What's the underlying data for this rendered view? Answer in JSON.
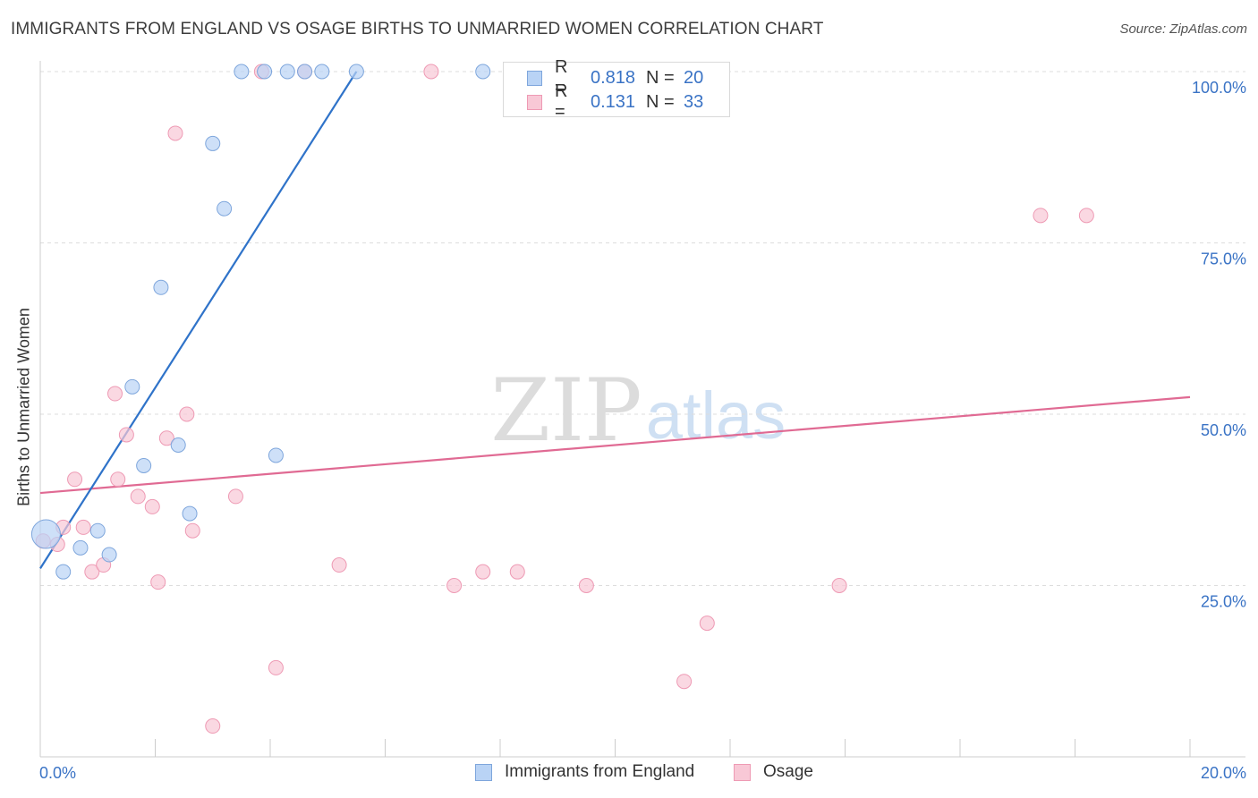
{
  "title": "IMMIGRANTS FROM ENGLAND VS OSAGE BIRTHS TO UNMARRIED WOMEN CORRELATION CHART",
  "source": "Source: ZipAtlas.com",
  "watermark": {
    "zip": "ZIP",
    "atlas": "atlas"
  },
  "colors": {
    "blue_fill": "#b9d3f5",
    "blue_stroke": "#7ea6dc",
    "blue_line": "#2f73c9",
    "pink_fill": "#f8c8d6",
    "pink_stroke": "#ee9ab4",
    "pink_line": "#e06a93",
    "axis_text": "#3a73c5"
  },
  "legend_top": [
    {
      "r_label": "R =",
      "r_value": "0.818",
      "n_label": "N =",
      "n_value": "20"
    },
    {
      "r_label": "R =",
      "r_value": "0.131",
      "n_label": "N =",
      "n_value": "33"
    }
  ],
  "chart_data": {
    "type": "scatter",
    "title": "IMMIGRANTS FROM ENGLAND VS OSAGE BIRTHS TO UNMARRIED WOMEN CORRELATION CHART",
    "xlabel": "",
    "ylabel": "Births to Unmarried Women",
    "xlim": [
      0,
      20
    ],
    "ylim": [
      0,
      100
    ],
    "x_tick_labels": [
      "0.0%",
      "20.0%"
    ],
    "y_tick_labels": [
      "25.0%",
      "50.0%",
      "75.0%",
      "100.0%"
    ],
    "y_ticks": [
      25,
      50,
      75,
      100
    ],
    "grid": true,
    "legend_position": "top-center",
    "series": [
      {
        "name": "Immigrants from England",
        "color": "blue",
        "trend": {
          "x": [
            0.0,
            5.5
          ],
          "y": [
            27.5,
            100.0
          ]
        },
        "points": [
          {
            "x": 0.1,
            "y": 32.5,
            "big": true
          },
          {
            "x": 0.4,
            "y": 27.0
          },
          {
            "x": 0.7,
            "y": 30.5
          },
          {
            "x": 1.0,
            "y": 33.0
          },
          {
            "x": 1.2,
            "y": 29.5
          },
          {
            "x": 1.6,
            "y": 54.0
          },
          {
            "x": 1.8,
            "y": 42.5
          },
          {
            "x": 2.1,
            "y": 68.5
          },
          {
            "x": 2.4,
            "y": 45.5
          },
          {
            "x": 2.6,
            "y": 35.5
          },
          {
            "x": 3.0,
            "y": 89.5
          },
          {
            "x": 3.2,
            "y": 80.0
          },
          {
            "x": 3.5,
            "y": 100.0
          },
          {
            "x": 3.9,
            "y": 100.0
          },
          {
            "x": 4.1,
            "y": 44.0
          },
          {
            "x": 4.3,
            "y": 100.0
          },
          {
            "x": 4.6,
            "y": 100.0
          },
          {
            "x": 4.9,
            "y": 100.0
          },
          {
            "x": 5.5,
            "y": 100.0
          },
          {
            "x": 7.7,
            "y": 100.0
          }
        ]
      },
      {
        "name": "Osage",
        "color": "pink",
        "trend": {
          "x": [
            0.0,
            20.0
          ],
          "y": [
            38.5,
            52.5
          ]
        },
        "points": [
          {
            "x": 0.05,
            "y": 31.5
          },
          {
            "x": 0.3,
            "y": 31.0
          },
          {
            "x": 0.4,
            "y": 33.5
          },
          {
            "x": 0.6,
            "y": 40.5
          },
          {
            "x": 0.75,
            "y": 33.5
          },
          {
            "x": 0.9,
            "y": 27.0
          },
          {
            "x": 1.1,
            "y": 28.0
          },
          {
            "x": 1.3,
            "y": 53.0
          },
          {
            "x": 1.35,
            "y": 40.5
          },
          {
            "x": 1.5,
            "y": 47.0
          },
          {
            "x": 1.7,
            "y": 38.0
          },
          {
            "x": 1.95,
            "y": 36.5
          },
          {
            "x": 2.05,
            "y": 25.5
          },
          {
            "x": 2.2,
            "y": 46.5
          },
          {
            "x": 2.35,
            "y": 91.0
          },
          {
            "x": 2.55,
            "y": 50.0
          },
          {
            "x": 2.65,
            "y": 33.0
          },
          {
            "x": 3.0,
            "y": 4.5
          },
          {
            "x": 3.4,
            "y": 38.0
          },
          {
            "x": 3.85,
            "y": 100.0
          },
          {
            "x": 4.1,
            "y": 13.0
          },
          {
            "x": 4.6,
            "y": 100.0
          },
          {
            "x": 5.2,
            "y": 28.0
          },
          {
            "x": 6.8,
            "y": 100.0
          },
          {
            "x": 7.2,
            "y": 25.0
          },
          {
            "x": 7.7,
            "y": 27.0
          },
          {
            "x": 8.3,
            "y": 27.0
          },
          {
            "x": 9.5,
            "y": 25.0
          },
          {
            "x": 11.2,
            "y": 11.0
          },
          {
            "x": 11.6,
            "y": 19.5
          },
          {
            "x": 13.9,
            "y": 25.0
          },
          {
            "x": 17.4,
            "y": 79.0
          },
          {
            "x": 18.2,
            "y": 79.0
          }
        ]
      }
    ]
  }
}
